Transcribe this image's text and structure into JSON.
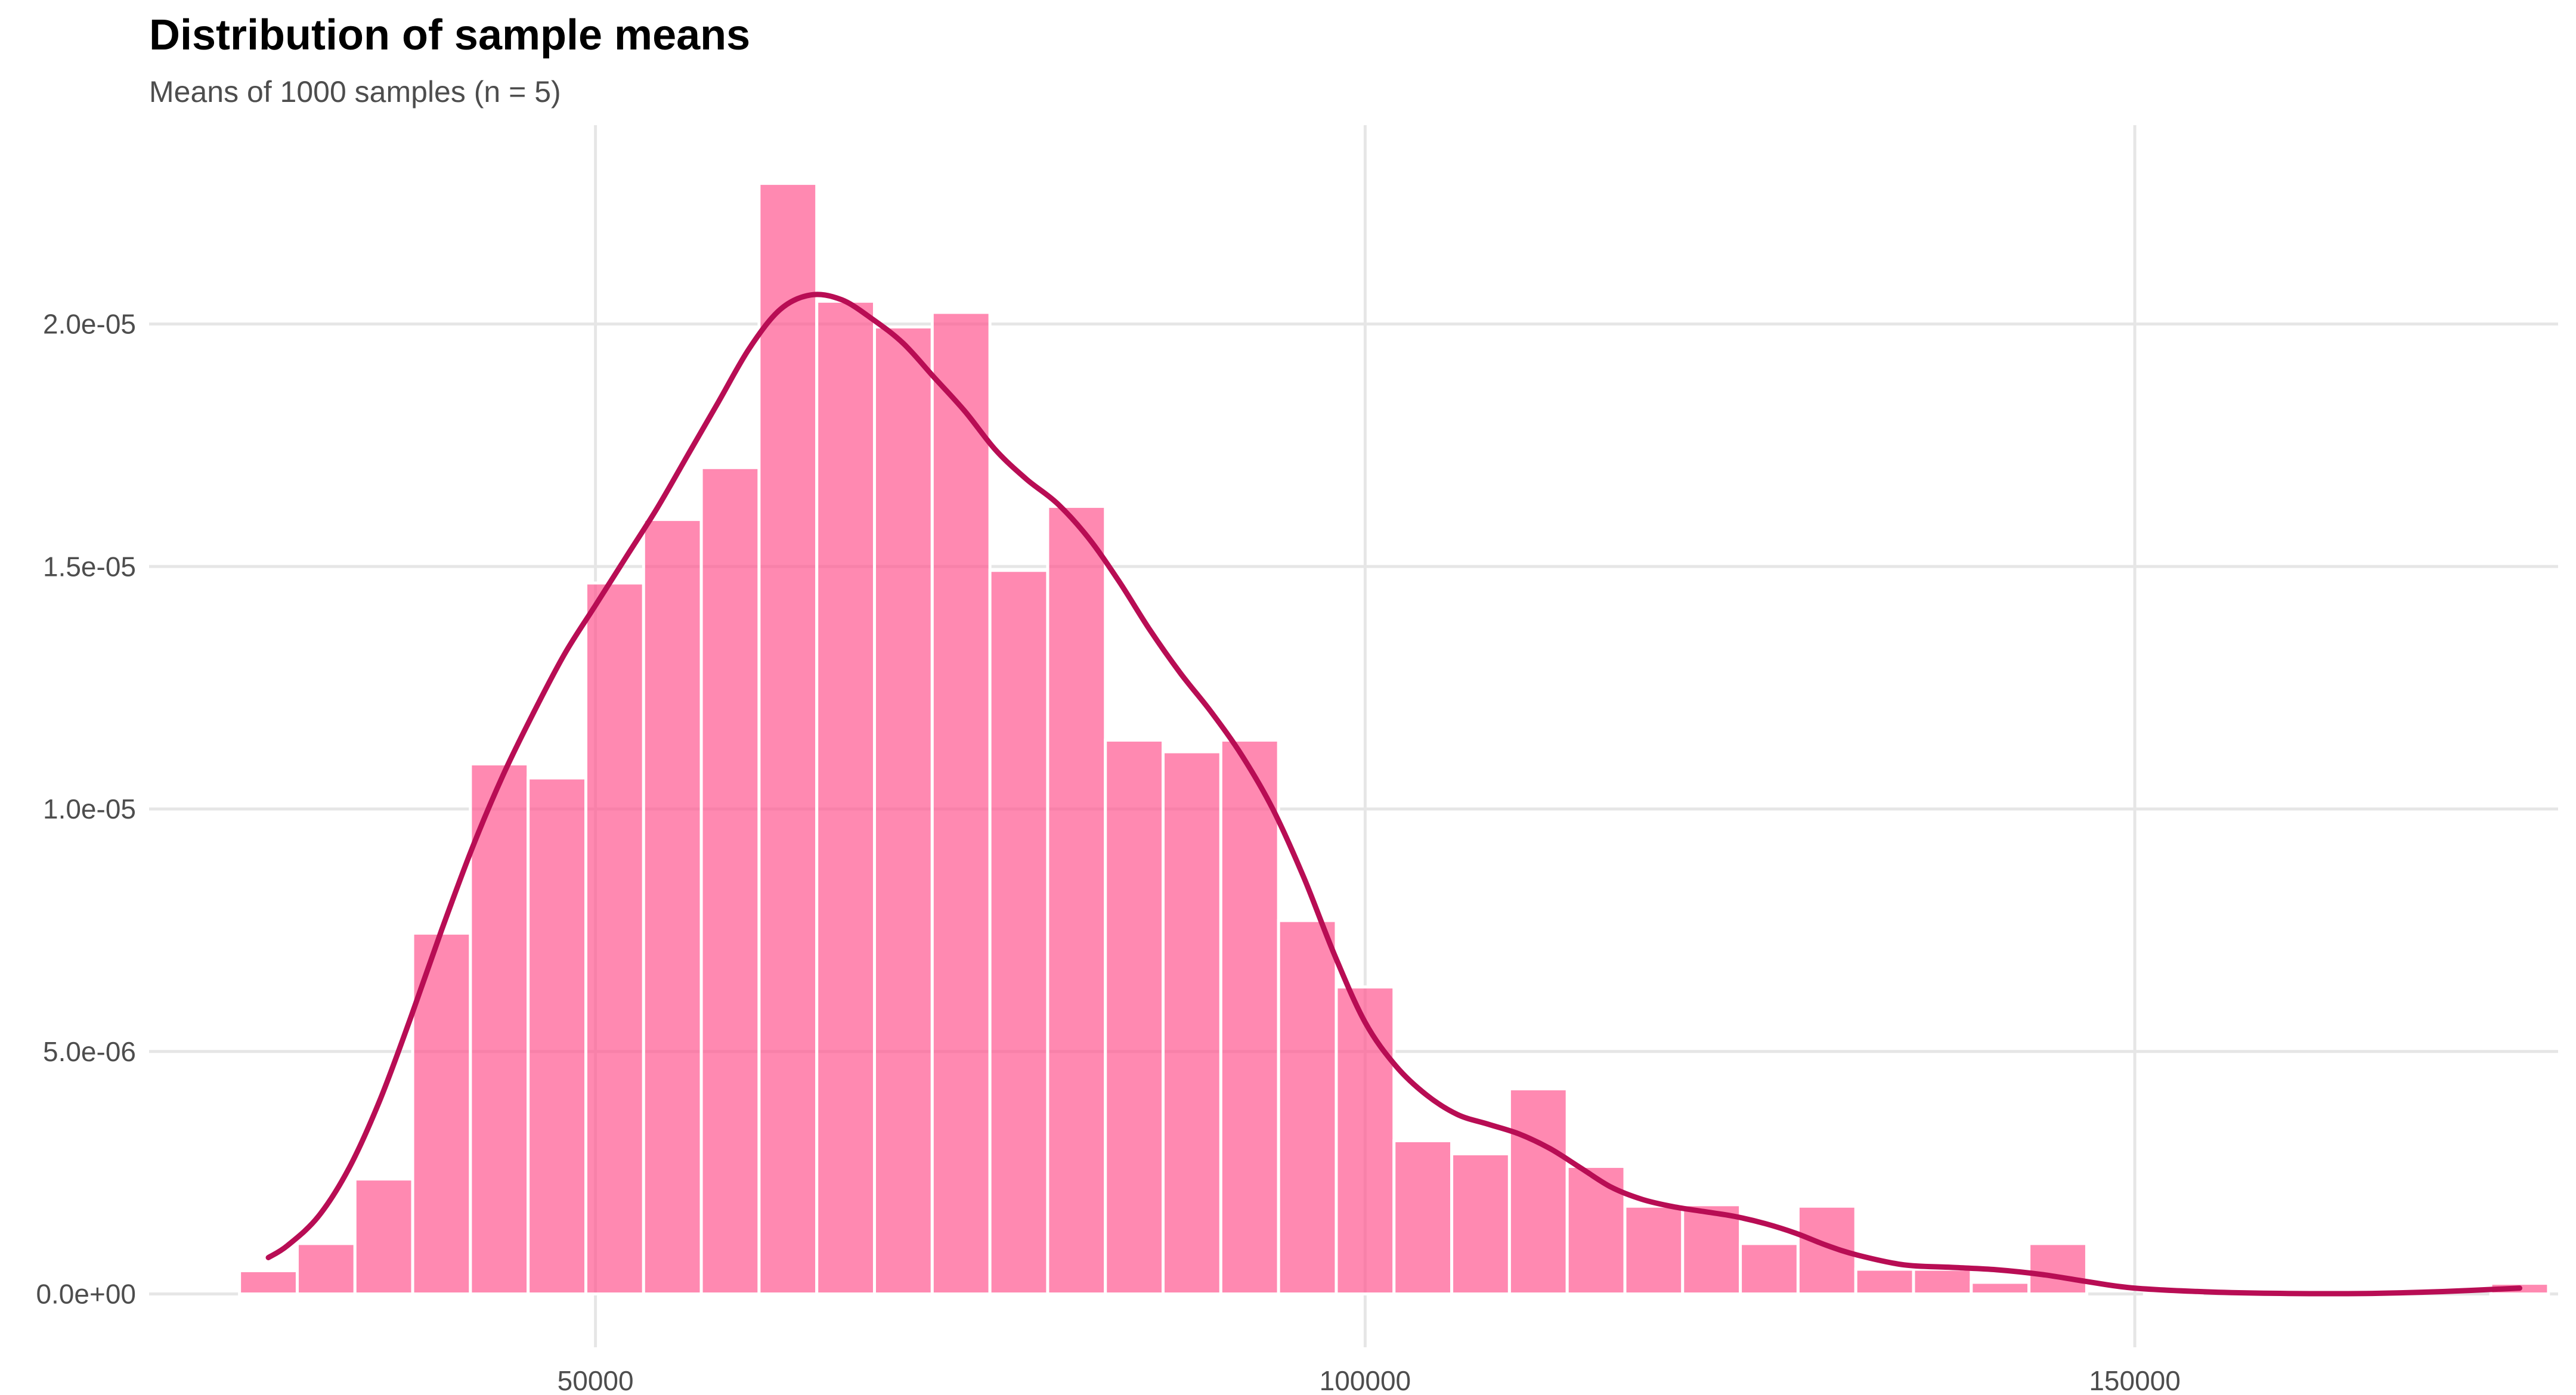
{
  "chart_data": {
    "type": "bar",
    "title": "Distribution of sample means",
    "subtitle": "Means of 1000 samples (n = 5)",
    "xlabel": "",
    "ylabel": "",
    "xlim": [
      21000,
      177500
    ],
    "ylim": [
      -1.1e-06,
      2.41e-05
    ],
    "grid": true,
    "legend": "none",
    "x_ticks": [
      {
        "value": 50000,
        "label": "50000"
      },
      {
        "value": 100000,
        "label": "100000"
      },
      {
        "value": 150000,
        "label": "150000"
      }
    ],
    "y_ticks": [
      {
        "value": 0,
        "label": "0.0e+00"
      },
      {
        "value": 5e-06,
        "label": "5.0e-06"
      },
      {
        "value": 1e-05,
        "label": "1.0e-05"
      },
      {
        "value": 1.5e-05,
        "label": "1.5e-05"
      },
      {
        "value": 2e-05,
        "label": "2.0e-05"
      }
    ],
    "histogram": {
      "bin_width": 3750,
      "bin_centers": [
        28750,
        32500,
        36250,
        40000,
        43750,
        47500,
        51250,
        55000,
        58750,
        62500,
        66250,
        70000,
        73750,
        77500,
        81250,
        85000,
        88750,
        92500,
        96250,
        100000,
        103750,
        107500,
        111250,
        115000,
        118750,
        122500,
        126250,
        130000,
        133750,
        137500,
        141250,
        145000,
        148750,
        152500,
        156250,
        160000,
        163750,
        167500,
        171250,
        175000
      ],
      "density": [
        4.8e-07,
        1.04e-06,
        2.37e-06,
        7.44e-06,
        1.093e-05,
        1.064e-05,
        1.466e-05,
        1.597e-05,
        1.704e-05,
        2.29e-05,
        2.047e-05,
        1.994e-05,
        2.024e-05,
        1.492e-05,
        1.624e-05,
        1.142e-05,
        1.118e-05,
        1.142e-05,
        7.7e-06,
        6.33e-06,
        3.16e-06,
        2.89e-06,
        4.23e-06,
        2.63e-06,
        1.81e-06,
        1.84e-06,
        1.04e-06,
        1.81e-06,
        5.1e-07,
        5.1e-07,
        2.4e-07,
        1.04e-06,
        0,
        2e-08,
        0,
        0,
        0,
        0,
        0,
        2.2e-07
      ]
    },
    "density_curve": {
      "x": [
        28750,
        30000,
        32000,
        34000,
        36000,
        38000,
        40000,
        42000,
        44000,
        46000,
        48000,
        50000,
        52000,
        54000,
        56000,
        58000,
        60000,
        62000,
        64000,
        66000,
        68000,
        70000,
        72000,
        74000,
        76000,
        78000,
        80000,
        82000,
        84000,
        86000,
        88000,
        90000,
        92000,
        94000,
        96000,
        98000,
        100000,
        102000,
        104000,
        106000,
        108000,
        110000,
        112000,
        114000,
        116000,
        118000,
        120000,
        122000,
        124000,
        126000,
        128000,
        130000,
        132000,
        135000,
        138000,
        141000,
        144000,
        147000,
        150000,
        155000,
        160000,
        165000,
        170000,
        175000
      ],
      "y": [
        7.5e-07,
        1e-06,
        1.6e-06,
        2.6e-06,
        4e-06,
        5.7e-06,
        7.5e-06,
        9.2e-06,
        1.07e-05,
        1.2e-05,
        1.32e-05,
        1.42e-05,
        1.52e-05,
        1.62e-05,
        1.73e-05,
        1.84e-05,
        1.95e-05,
        2.03e-05,
        2.06e-05,
        2.05e-05,
        2.01e-05,
        1.96e-05,
        1.89e-05,
        1.82e-05,
        1.74e-05,
        1.68e-05,
        1.63e-05,
        1.56e-05,
        1.47e-05,
        1.37e-05,
        1.28e-05,
        1.2e-05,
        1.11e-05,
        1e-05,
        8.6e-06,
        7e-06,
        5.6e-06,
        4.7e-06,
        4.1e-06,
        3.7e-06,
        3.5e-06,
        3.3e-06,
        3e-06,
        2.6e-06,
        2.2e-06,
        1.95e-06,
        1.8e-06,
        1.7e-06,
        1.6e-06,
        1.45e-06,
        1.25e-06,
        1e-06,
        8e-07,
        6e-07,
        5.5e-07,
        5e-07,
        4e-07,
        2.5e-07,
        1.2e-07,
        4e-08,
        1e-08,
        1e-08,
        5e-08,
        1.2e-07
      ]
    },
    "colors": {
      "bar_fill": "#ff4f8a",
      "bar_opacity": 0.67,
      "bar_edge": "#ffffff",
      "curve": "#b80d54",
      "grid": "#e6e6e6"
    }
  }
}
